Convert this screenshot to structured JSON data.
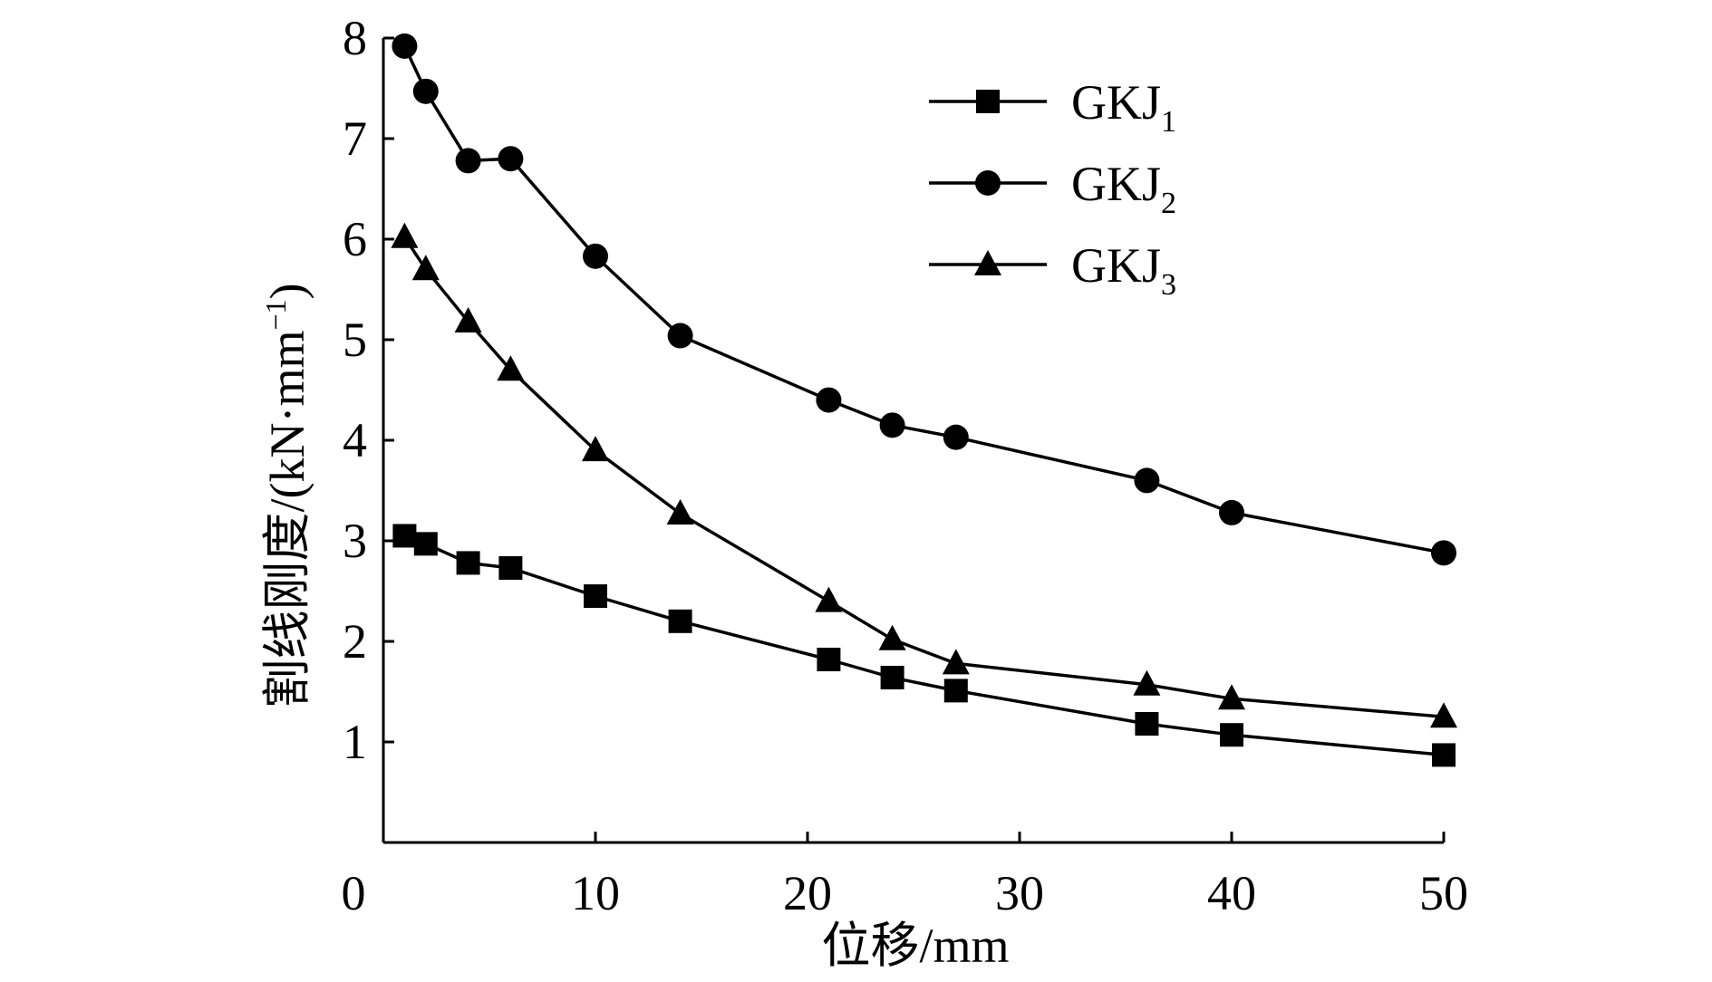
{
  "chart_data": {
    "type": "line",
    "title": "",
    "xlabel": "位移/mm",
    "ylabel": "割线刚度/(kN·mm",
    "ylabel_sup": "−1",
    "ylabel_close": ")",
    "xlim": [
      0,
      50
    ],
    "ylim": [
      0,
      8
    ],
    "xticks": [
      0,
      10,
      20,
      30,
      40,
      50
    ],
    "yticks": [
      1,
      2,
      3,
      4,
      5,
      6,
      7,
      8
    ],
    "xtick_labels": [
      "0",
      "10",
      "20",
      "30",
      "40",
      "50"
    ],
    "ytick_labels": [
      "1",
      "2",
      "3",
      "4",
      "5",
      "6",
      "7",
      "8"
    ],
    "grid": false,
    "legend_position": "top-right",
    "series": [
      {
        "name": "GKJ1",
        "label_main": "GKJ",
        "label_sub": "1",
        "marker": "square",
        "x": [
          1,
          2,
          4,
          6,
          10,
          14,
          21,
          24,
          27,
          36,
          40,
          50
        ],
        "y": [
          3.05,
          2.97,
          2.78,
          2.73,
          2.45,
          2.2,
          1.82,
          1.64,
          1.51,
          1.18,
          1.07,
          0.87
        ]
      },
      {
        "name": "GKJ2",
        "label_main": "GKJ",
        "label_sub": "2",
        "marker": "circle",
        "x": [
          1,
          2,
          4,
          6,
          10,
          14,
          21,
          24,
          27,
          36,
          40,
          50
        ],
        "y": [
          7.92,
          7.47,
          6.78,
          6.8,
          5.83,
          5.04,
          4.4,
          4.15,
          4.03,
          3.6,
          3.28,
          2.88
        ]
      },
      {
        "name": "GKJ3",
        "label_main": "GKJ",
        "label_sub": "3",
        "marker": "triangle",
        "x": [
          1,
          2,
          4,
          6,
          10,
          14,
          21,
          24,
          27,
          36,
          40,
          50
        ],
        "y": [
          6.02,
          5.7,
          5.18,
          4.7,
          3.9,
          3.27,
          2.4,
          2.02,
          1.78,
          1.57,
          1.43,
          1.25
        ]
      }
    ]
  }
}
